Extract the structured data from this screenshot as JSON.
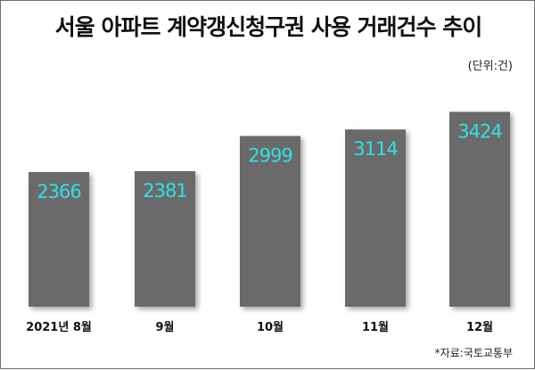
{
  "title": "서울 아파트 계약갱신청구권 사용 거래건수 추이",
  "unit_note": "(단위:건)",
  "source_note": "*자료:국토교통부",
  "colors": {
    "bar": "#6b6b6b",
    "value_label": "#2fe0e6",
    "shadow": "#c9c9c9"
  },
  "chart_data": {
    "type": "bar",
    "title": "서울 아파트 계약갱신청구권 사용 거래건수 추이",
    "categories": [
      "2021년 8월",
      "9월",
      "10월",
      "11월",
      "12월"
    ],
    "values": [
      2366,
      2381,
      2999,
      3114,
      3424
    ],
    "unit": "건",
    "ylim": [
      0,
      3650
    ],
    "grid": false,
    "legend": "none",
    "data_labels": true
  }
}
